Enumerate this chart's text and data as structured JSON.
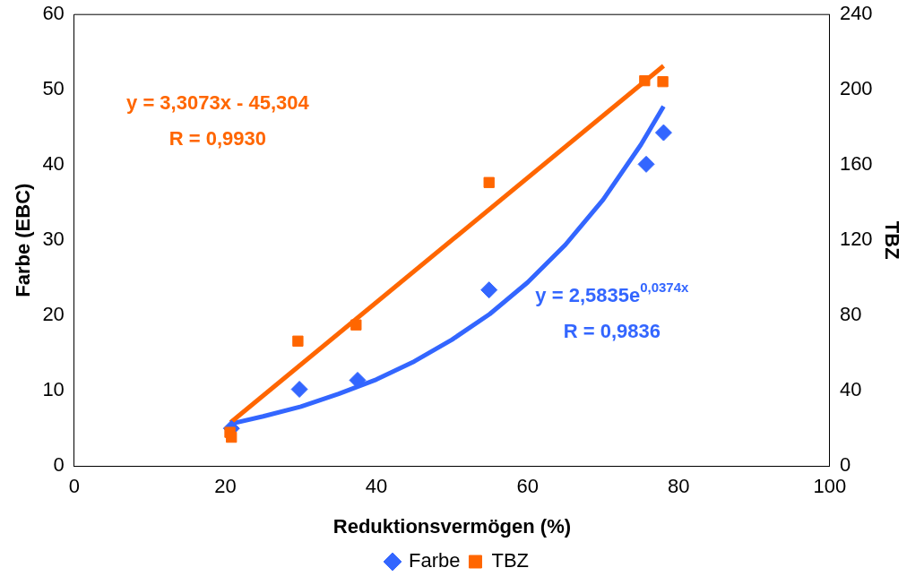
{
  "chart_data": {
    "type": "scatter",
    "xlabel": "Reduktionsvermögen (%)",
    "ylabel": "Farbe (EBC)",
    "y2label": "TBZ",
    "xlim": [
      0,
      100
    ],
    "xticks": [
      0,
      20,
      40,
      60,
      80,
      100
    ],
    "ylim": [
      0,
      60
    ],
    "yticks": [
      0,
      10,
      20,
      30,
      40,
      50,
      60
    ],
    "y2lim": [
      0,
      240
    ],
    "y2ticks": [
      0,
      40,
      80,
      120,
      160,
      200,
      240
    ],
    "grid": false,
    "legend": "bottom",
    "series": [
      {
        "name": "Farbe",
        "marker": "diamond",
        "color": "#3366ff",
        "x": [
          20.8,
          29.8,
          37.5,
          54.9,
          75.7,
          78.0
        ],
        "values": [
          5.0,
          10.2,
          11.4,
          23.4,
          40.1,
          44.3
        ]
      },
      {
        "name": "TBZ",
        "marker": "square",
        "axis": "y2",
        "color": "#ff6600",
        "x": [
          20.6,
          20.8,
          29.6,
          37.3,
          54.9,
          75.5,
          77.9
        ],
        "values": [
          17.9,
          15.3,
          66.4,
          75.0,
          150.7,
          204.8,
          204.3
        ]
      },
      {
        "type": "line",
        "marker": "none",
        "axis": "y2",
        "color": "#ff6600",
        "x": [
          20.7,
          78.0
        ],
        "values": [
          23.2,
          212.7
        ]
      },
      {
        "type": "line",
        "marker": "none",
        "color": "#3366ff",
        "x": [
          20.7,
          25,
          30,
          35,
          40,
          45,
          50,
          55,
          60,
          65,
          70,
          75,
          78
        ],
        "values": [
          5.6,
          6.6,
          7.9,
          9.6,
          11.5,
          13.9,
          16.8,
          20.2,
          24.4,
          29.4,
          35.4,
          42.7,
          47.8
        ]
      }
    ],
    "annotations": [
      "y = 3,3073x - 45,304",
      "R = 0,9930",
      "y = 2,5835e$^{0,0374x}$",
      "R = 0,9836"
    ]
  }
}
